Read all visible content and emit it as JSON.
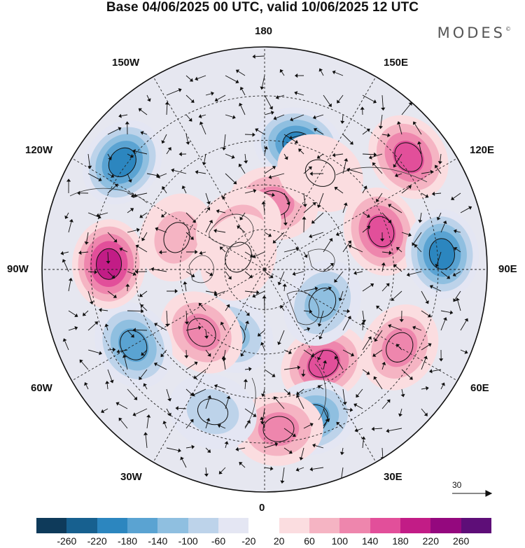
{
  "title": "Base 04/06/2025 00 UTC, valid 10/06/2025 12 UTC",
  "brand": {
    "text": "MODES",
    "mark": "©"
  },
  "longitude_labels": {
    "top": "180",
    "bottom": "0",
    "left": "90W",
    "right": "90E",
    "upper_left_1": "150W",
    "upper_left_2": "120W",
    "upper_right_1": "150E",
    "upper_right_2": "120E",
    "lower_left_1": "60W",
    "lower_left_2": "30W",
    "lower_right_1": "60E",
    "lower_right_2": "30E"
  },
  "reference_vector": {
    "value": "30"
  },
  "colorbar": {
    "colors": [
      "#0e3a5a",
      "#17608f",
      "#2c86bf",
      "#5aa3d2",
      "#8fbfe0",
      "#bdd3ea",
      "#e4e6f3",
      "#ffffff",
      "#fbdde0",
      "#f5b4c3",
      "#ee86ad",
      "#e24f9a",
      "#c21c86",
      "#94087e",
      "#5e0e78"
    ],
    "tick_labels": [
      "-260",
      "-220",
      "-180",
      "-140",
      "-100",
      "-60",
      "-20",
      "20",
      "60",
      "100",
      "140",
      "180",
      "220",
      "260"
    ]
  },
  "map": {
    "projection": "north-polar-stereographic",
    "grid": "dashed",
    "anomaly_centers": [
      {
        "lon_deg": 165,
        "r": 0.58,
        "value": -200
      },
      {
        "lon_deg": 172,
        "r": 0.3,
        "value": 100
      },
      {
        "lon_deg": 128,
        "r": 0.82,
        "value": 140
      },
      {
        "lon_deg": 108,
        "r": 0.55,
        "value": 140
      },
      {
        "lon_deg": 95,
        "r": 0.8,
        "value": -180
      },
      {
        "lon_deg": 60,
        "r": 0.7,
        "value": 120
      },
      {
        "lon_deg": 32,
        "r": 0.5,
        "value": 160
      },
      {
        "lon_deg": 18,
        "r": 0.7,
        "value": -140
      },
      {
        "lon_deg": 5,
        "r": 0.72,
        "value": 120
      },
      {
        "lon_deg": -28,
        "r": 0.33,
        "value": -100
      },
      {
        "lon_deg": -45,
        "r": 0.4,
        "value": 100
      },
      {
        "lon_deg": -60,
        "r": 0.68,
        "value": -140
      },
      {
        "lon_deg": -92,
        "r": 0.7,
        "value": 200
      },
      {
        "lon_deg": -110,
        "r": 0.42,
        "value": 60
      },
      {
        "lon_deg": -127,
        "r": 0.8,
        "value": -200
      },
      {
        "lon_deg": -148,
        "r": 0.22,
        "value": 60
      },
      {
        "lon_deg": -115,
        "r": 0.13,
        "value": 40
      },
      {
        "lon_deg": 60,
        "r": 0.3,
        "value": -100
      },
      {
        "lon_deg": -20,
        "r": 0.68,
        "value": -60
      },
      {
        "lon_deg": 150,
        "r": 0.5,
        "value": 40
      }
    ]
  }
}
